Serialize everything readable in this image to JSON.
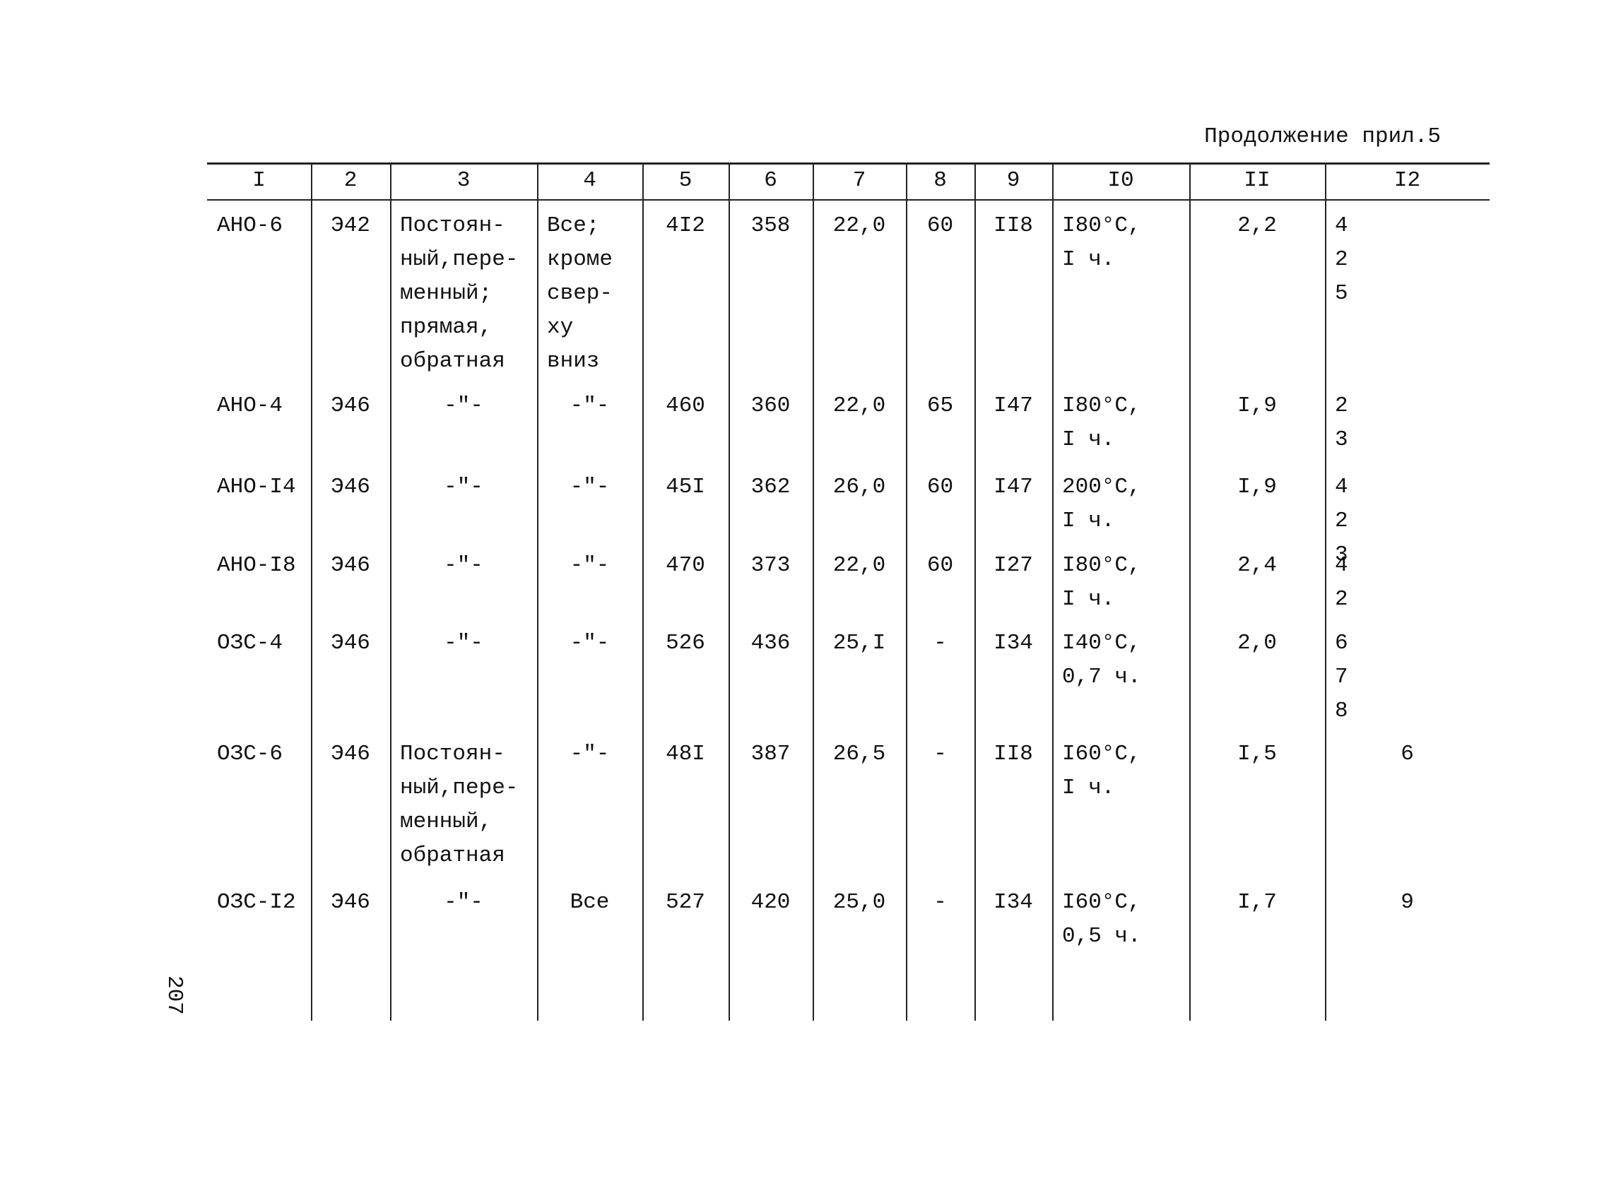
{
  "header": {
    "continuation": "Продолжение прил.5"
  },
  "page_number": "207",
  "table": {
    "header": [
      "I",
      "2",
      "3",
      "4",
      "5",
      "6",
      "7",
      "8",
      "9",
      "I0",
      "II",
      "I2"
    ],
    "rows": [
      [
        [
          "АНО-6"
        ],
        [
          "Э42"
        ],
        [
          "Постоян-",
          "ный,пере-",
          "менный;",
          "прямая,",
          "обратная"
        ],
        [
          "Все;",
          "кроме",
          "свер-",
          "ху",
          "вниз"
        ],
        [
          "4I2"
        ],
        [
          "358"
        ],
        [
          "22,0"
        ],
        [
          "60"
        ],
        [
          "II8"
        ],
        [
          "I80°C,",
          "I ч."
        ],
        [
          "2,2"
        ],
        [
          "4",
          "2",
          "5"
        ]
      ],
      [
        [
          "АНО-4"
        ],
        [
          "Э46"
        ],
        [
          "-\"-"
        ],
        [
          "-\"-"
        ],
        [
          "460"
        ],
        [
          "360"
        ],
        [
          "22,0"
        ],
        [
          "65"
        ],
        [
          "I47"
        ],
        [
          "I80°C,",
          "I ч."
        ],
        [
          "I,9"
        ],
        [
          "2",
          "3"
        ]
      ],
      [
        [
          "АНО-I4"
        ],
        [
          "Э46"
        ],
        [
          "-\"-"
        ],
        [
          "-\"-"
        ],
        [
          "45I"
        ],
        [
          "362"
        ],
        [
          "26,0"
        ],
        [
          "60"
        ],
        [
          "I47"
        ],
        [
          "200°C,",
          "I ч."
        ],
        [
          "I,9"
        ],
        [
          "4",
          "2",
          "3"
        ]
      ],
      [
        [
          "АНО-I8"
        ],
        [
          "Э46"
        ],
        [
          "-\"-"
        ],
        [
          "-\"-"
        ],
        [
          "470"
        ],
        [
          "373"
        ],
        [
          "22,0"
        ],
        [
          "60"
        ],
        [
          "I27"
        ],
        [
          "I80°C,",
          "I ч."
        ],
        [
          "2,4"
        ],
        [
          "4",
          "2"
        ]
      ],
      [
        [
          "ОЗС-4"
        ],
        [
          "Э46"
        ],
        [
          "-\"-"
        ],
        [
          "-\"-"
        ],
        [
          "526"
        ],
        [
          "436"
        ],
        [
          "25,I"
        ],
        [
          "-"
        ],
        [
          "I34"
        ],
        [
          "I40°C,",
          "0,7 ч."
        ],
        [
          "2,0"
        ],
        [
          "6",
          "7",
          "8"
        ]
      ],
      [
        [
          "ОЗС-6"
        ],
        [
          "Э46"
        ],
        [
          "Постоян-",
          "ный,пере-",
          "менный,",
          "обратная"
        ],
        [
          "-\"-"
        ],
        [
          "48I"
        ],
        [
          "387"
        ],
        [
          "26,5"
        ],
        [
          "-"
        ],
        [
          "II8"
        ],
        [
          "I60°C,",
          "I ч."
        ],
        [
          "I,5"
        ],
        [
          "6"
        ]
      ],
      [
        [
          "ОЗС-I2"
        ],
        [
          "Э46"
        ],
        [
          "-\"-"
        ],
        [
          "Все"
        ],
        [
          "527"
        ],
        [
          "420"
        ],
        [
          "25,0"
        ],
        [
          "-"
        ],
        [
          "I34"
        ],
        [
          "I60°C,",
          "0,5 ч."
        ],
        [
          "I,7"
        ],
        [
          "9"
        ]
      ]
    ]
  }
}
